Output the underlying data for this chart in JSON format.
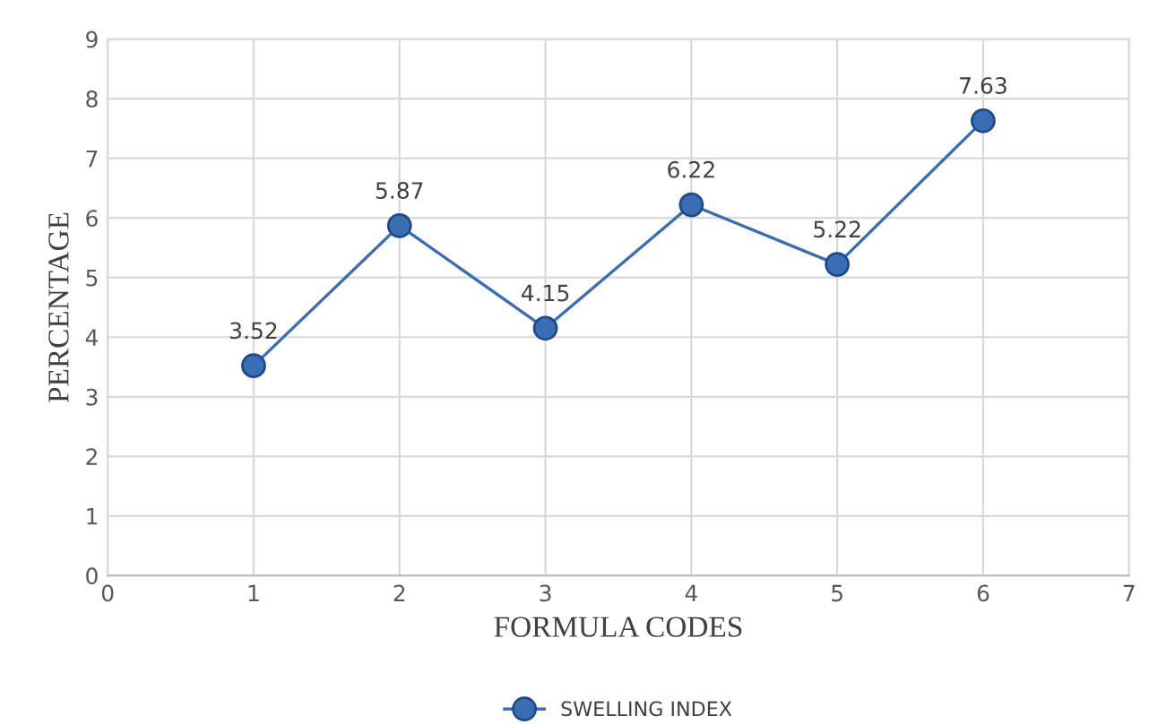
{
  "chart_data": {
    "type": "line",
    "xlabel": "FORMULA CODES",
    "ylabel": "PERCENTAGE",
    "x": [
      1,
      2,
      3,
      4,
      5,
      6
    ],
    "series": [
      {
        "name": "SWELLING INDEX",
        "color": "#3a6db4",
        "values": [
          3.52,
          5.87,
          4.15,
          6.22,
          5.22,
          7.63
        ]
      }
    ],
    "xlim": [
      0,
      7
    ],
    "xticks": [
      0,
      1,
      2,
      3,
      4,
      5,
      6,
      7
    ],
    "ylim": [
      0,
      9
    ],
    "yticks": [
      0,
      1,
      2,
      3,
      4,
      5,
      6,
      7,
      8,
      9
    ],
    "grid": true,
    "legend": "bottom",
    "marker": "circle",
    "line_style": "solid",
    "data_labels": true
  }
}
